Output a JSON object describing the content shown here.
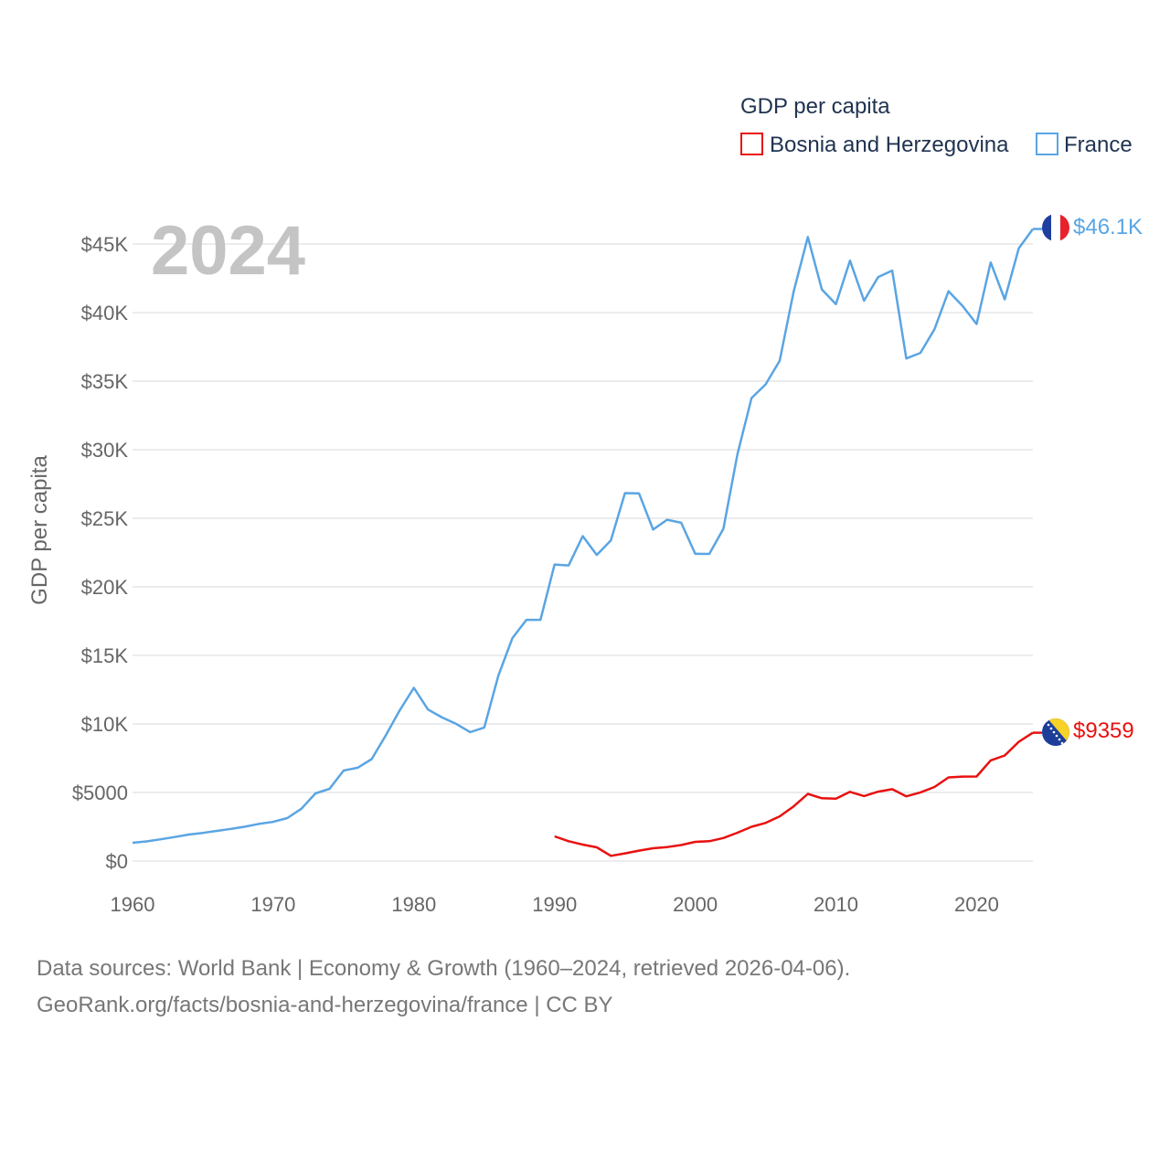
{
  "colors": {
    "bosnia": "#e8110f",
    "france": "#5aa5e3",
    "grid": "#e6e6e6",
    "text": "#1f3350",
    "axis_text": "#666666",
    "year_text": "#c4c4c4"
  },
  "legend": {
    "title": "GDP per capita",
    "items": [
      {
        "label": "Bosnia and Herzegovina",
        "series": "bosnia"
      },
      {
        "label": "France",
        "series": "france"
      }
    ]
  },
  "year_label": "2024",
  "end_labels": {
    "france": "$46.1K",
    "bosnia": "$9359"
  },
  "flags": {
    "france": "france-flag-icon",
    "bosnia": "bosnia-flag-icon"
  },
  "source": {
    "line1": "Data sources: World Bank | Economy & Growth (1960–2024, retrieved 2026-04-06).",
    "line2": "GeoRank.org/facts/bosnia-and-herzegovina/france | CC BY"
  },
  "chart_data": {
    "type": "line",
    "title": "GDP per capita",
    "xlabel": "",
    "ylabel": "GDP per capita",
    "xlim": [
      1960,
      2024
    ],
    "ylim": [
      0,
      47500
    ],
    "x_ticks": [
      1960,
      1970,
      1980,
      1990,
      2000,
      2010,
      2020
    ],
    "x_tick_labels": [
      "1960",
      "1970",
      "1980",
      "1990",
      "2000",
      "2010",
      "2020"
    ],
    "y_ticks": [
      0,
      5000,
      10000,
      15000,
      20000,
      25000,
      30000,
      35000,
      40000,
      45000
    ],
    "y_tick_labels": [
      "$0",
      "$5000",
      "$10K",
      "$15K",
      "$20K",
      "$25K",
      "$30K",
      "$35K",
      "$40K",
      "$45K"
    ],
    "grid": true,
    "legend_position": "top-right",
    "series": [
      {
        "key": "france",
        "name": "France",
        "x": [
          1960,
          1961,
          1962,
          1963,
          1964,
          1965,
          1966,
          1967,
          1968,
          1969,
          1970,
          1971,
          1972,
          1973,
          1974,
          1975,
          1976,
          1977,
          1978,
          1979,
          1980,
          1981,
          1982,
          1983,
          1984,
          1985,
          1986,
          1987,
          1988,
          1989,
          1990,
          1991,
          1992,
          1993,
          1994,
          1995,
          1996,
          1997,
          1998,
          1999,
          2000,
          2001,
          2002,
          2003,
          2004,
          2005,
          2006,
          2007,
          2008,
          2009,
          2010,
          2011,
          2012,
          2013,
          2014,
          2015,
          2016,
          2017,
          2018,
          2019,
          2020,
          2021,
          2022,
          2023,
          2024
        ],
        "values": [
          1334,
          1430,
          1585,
          1753,
          1932,
          2056,
          2203,
          2347,
          2508,
          2714,
          2858,
          3130,
          3811,
          4933,
          5269,
          6600,
          6808,
          7433,
          9162,
          11010,
          12636,
          11054,
          10476,
          10006,
          9402,
          9742,
          13517,
          16248,
          17596,
          17591,
          21625,
          21559,
          23700,
          22326,
          23385,
          26832,
          26816,
          24178,
          24894,
          24672,
          22406,
          22403,
          24230,
          29677,
          33767,
          34767,
          36493,
          41573,
          45516,
          41693,
          40620,
          43791,
          40870,
          42593,
          43068,
          36652,
          37063,
          38781,
          41558,
          40494,
          39170,
          43659,
          40964,
          44690,
          46100
        ]
      },
      {
        "key": "bosnia",
        "name": "Bosnia and Herzegovina",
        "x": [
          1990,
          1991,
          1992,
          1993,
          1994,
          1995,
          1996,
          1997,
          1998,
          1999,
          2000,
          2001,
          2002,
          2003,
          2004,
          2005,
          2006,
          2007,
          2008,
          2009,
          2010,
          2011,
          2012,
          2013,
          2014,
          2015,
          2016,
          2017,
          2018,
          2019,
          2020,
          2021,
          2022,
          2023,
          2024
        ],
        "values": [
          1800,
          1450,
          1200,
          1000,
          380,
          560,
          760,
          930,
          1020,
          1170,
          1400,
          1450,
          1680,
          2070,
          2500,
          2780,
          3260,
          3990,
          4900,
          4580,
          4550,
          5050,
          4740,
          5060,
          5240,
          4720,
          5010,
          5400,
          6100,
          6160,
          6170,
          7340,
          7700,
          8700,
          9359
        ]
      }
    ]
  }
}
